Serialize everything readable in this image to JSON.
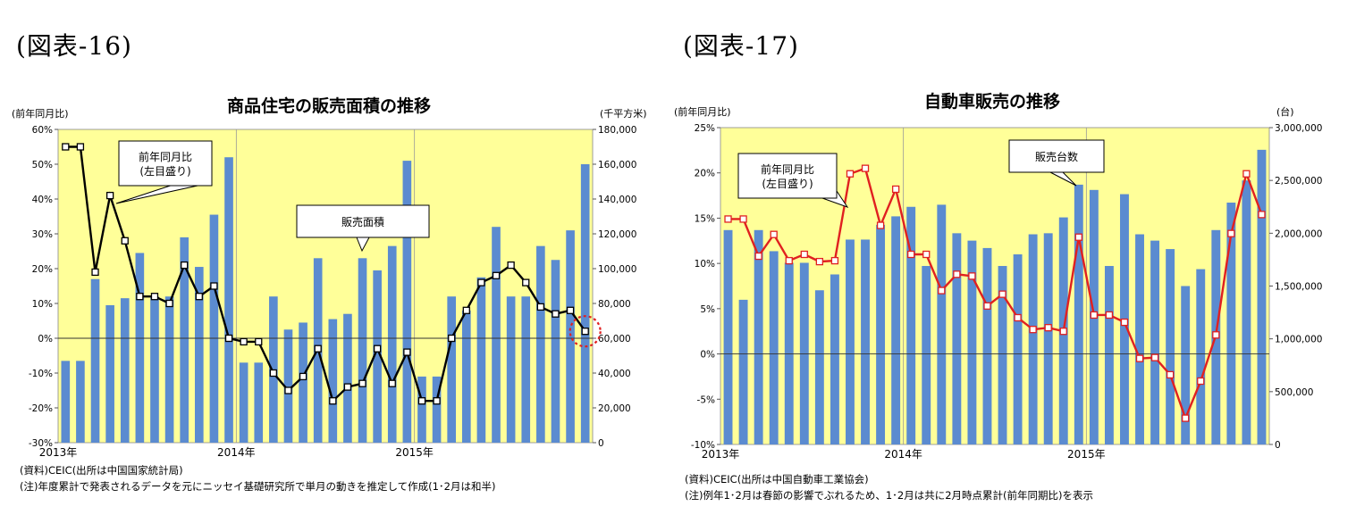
{
  "figures": [
    {
      "id": "fig16",
      "label": "(図表-16)",
      "source": "(資料)CEIC(出所は中国国家統計局)",
      "note": "(注)年度累計で発表されるデータを元にニッセイ基礎研究所で単月の動きを推定して作成(1･2月は和半)"
    },
    {
      "id": "fig17",
      "label": "(図表-17)",
      "source": "(資料)CEIC(出所は中国自動車工業協会)",
      "note": "(注)例年1･2月は春節の影響でぶれるため、1･2月は共に2月時点累計(前年同期比)を表示"
    }
  ],
  "chart_data": [
    {
      "type": "bar+line",
      "title": "商品住宅の販売面積の推移",
      "left_axis_label": "(前年同月比)",
      "right_axis_label": "(千平方米)",
      "x_labels": [
        "2013年",
        "2014年",
        "2015年"
      ],
      "left_ylim": [
        -30,
        60
      ],
      "left_ticks": [
        "60%",
        "50%",
        "40%",
        "30%",
        "20%",
        "10%",
        "0%",
        "-10%",
        "-20%",
        "-30%"
      ],
      "right_ylim": [
        0,
        180000
      ],
      "right_ticks": [
        "180,000",
        "160,000",
        "140,000",
        "120,000",
        "100,000",
        "80,000",
        "60,000",
        "40,000",
        "20,000",
        "0"
      ],
      "background_color": "#ffff99",
      "bar_color": "#5b8bd0",
      "line_color": "#000000",
      "series": [
        {
          "name": "販売面積",
          "axis": "right",
          "values": [
            47000,
            47000,
            94000,
            79000,
            83000,
            109000,
            84000,
            84000,
            118000,
            101000,
            131000,
            164000,
            46000,
            46000,
            84000,
            65000,
            69000,
            106000,
            71000,
            74000,
            106000,
            99000,
            113000,
            162000,
            38000,
            38000,
            84000,
            76000,
            95000,
            124000,
            84000,
            84000,
            113000,
            105000,
            122000,
            160000
          ]
        },
        {
          "name": "前年同月比",
          "axis": "left",
          "values": [
            55,
            55,
            19,
            41,
            28,
            12,
            12,
            10,
            21,
            12,
            15,
            0,
            -1,
            -1,
            -10,
            -15,
            -11,
            -3,
            -18,
            -14,
            -13,
            -3,
            -13,
            -4,
            -18,
            -18,
            0,
            8,
            16,
            18,
            21,
            16,
            9,
            7,
            8,
            2
          ]
        }
      ],
      "annotations": [
        {
          "text": "前年同月比\n(左目盛り)"
        },
        {
          "text": "販売面積"
        }
      ],
      "grid": false
    },
    {
      "type": "bar+line",
      "title": "自動車販売の推移",
      "left_axis_label": "(前年同月比)",
      "right_axis_label": "(台)",
      "x_labels": [
        "2013年",
        "2014年",
        "2015年"
      ],
      "left_ylim": [
        -10,
        25
      ],
      "left_ticks": [
        "25%",
        "20%",
        "15%",
        "10%",
        "5%",
        "0%",
        "-5%",
        "-10%"
      ],
      "right_ylim": [
        0,
        3000000
      ],
      "right_ticks": [
        "3,000,000",
        "2,500,000",
        "2,000,000",
        "1,500,000",
        "1,000,000",
        "500,000",
        "0"
      ],
      "background_color": "#ffff99",
      "bar_color": "#5b8bd0",
      "line_color": "#e02020",
      "series": [
        {
          "name": "販売台数",
          "axis": "right",
          "values": [
            2030000,
            1370000,
            2030000,
            1830000,
            1720000,
            1720000,
            1460000,
            1610000,
            1940000,
            1940000,
            2080000,
            2160000,
            2250000,
            1690000,
            2270000,
            2000000,
            1930000,
            1860000,
            1690000,
            1800000,
            1990000,
            2000000,
            2150000,
            2460000,
            2410000,
            1690000,
            2370000,
            1990000,
            1930000,
            1850000,
            1500000,
            1660000,
            2030000,
            2290000,
            2500000,
            2790000
          ]
        },
        {
          "name": "前年同月比",
          "axis": "left",
          "values": [
            14.9,
            14.9,
            10.8,
            13.2,
            10.3,
            11.0,
            10.2,
            10.3,
            19.9,
            20.5,
            14.2,
            18.2,
            11.0,
            11.0,
            7.0,
            8.8,
            8.6,
            5.3,
            6.6,
            4.0,
            2.7,
            2.9,
            2.5,
            12.9,
            4.3,
            4.3,
            3.5,
            -0.5,
            -0.4,
            -2.3,
            -7.1,
            -3.0,
            2.1,
            13.3,
            19.9,
            15.4
          ]
        }
      ],
      "annotations": [
        {
          "text": "前年同月比\n(左目盛り)"
        },
        {
          "text": "販売台数"
        }
      ],
      "grid": false
    }
  ]
}
